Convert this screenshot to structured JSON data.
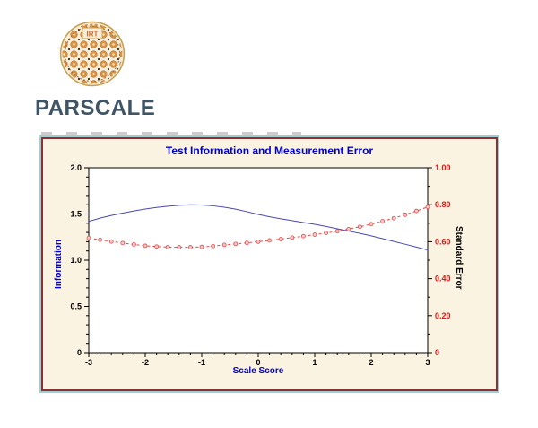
{
  "brand": {
    "name": "PARSCALE",
    "logo_text": "IRT"
  },
  "window": {
    "title": "Test Information and Measurement Error"
  },
  "chart_data": {
    "type": "line",
    "title": "Test Information and Measurement Error",
    "xlabel": "Scale Score",
    "ylabel_left": "Information",
    "ylabel_right": "Standard Error",
    "xlim": [
      -3,
      3
    ],
    "ylim_left": [
      0,
      2
    ],
    "ylim_right": [
      0,
      1
    ],
    "grid": false,
    "legend": "none",
    "x_tick_values": [
      -3,
      -2,
      -1,
      0,
      1,
      2,
      3
    ],
    "x_tick_labels": [
      "-3",
      "-2",
      "-1",
      "0",
      "1",
      "2",
      "3"
    ],
    "x_minor_step": 0.2,
    "left_tick_values": [
      2,
      1.5,
      1,
      0.5,
      0
    ],
    "left_tick_labels": [
      "2.0",
      "1.5",
      "1.0",
      "0.5",
      "0"
    ],
    "left_minor_step": 0.1,
    "right_tick_values": [
      1,
      0.8,
      0.6,
      0.4,
      0.2,
      0
    ],
    "right_tick_labels": [
      "1.00",
      "0.80",
      "0.60",
      "0.40",
      "0.20",
      "0"
    ],
    "right_minor_step": 0.1,
    "x": [
      -3,
      -2.8,
      -2.6,
      -2.4,
      -2.2,
      -2,
      -1.8,
      -1.6,
      -1.4,
      -1.2,
      -1,
      -0.8,
      -0.6,
      -0.4,
      -0.2,
      0,
      0.2,
      0.4,
      0.6,
      0.8,
      1,
      1.2,
      1.4,
      1.6,
      1.8,
      2,
      2.2,
      2.4,
      2.6,
      2.8,
      3
    ],
    "series": [
      {
        "name": "Information",
        "axis": "left",
        "color": "#4a4aae",
        "style": "solid",
        "marker": "none",
        "values": [
          1.42,
          1.455,
          1.484,
          1.51,
          1.533,
          1.553,
          1.57,
          1.584,
          1.594,
          1.599,
          1.597,
          1.588,
          1.573,
          1.552,
          1.525,
          1.495,
          1.47,
          1.448,
          1.428,
          1.408,
          1.388,
          1.365,
          1.34,
          1.315,
          1.29,
          1.263,
          1.233,
          1.203,
          1.173,
          1.142,
          1.11
        ]
      },
      {
        "name": "Standard Error",
        "axis": "right",
        "color": "#e84545",
        "style": "dashed",
        "marker": "circle",
        "marker_fill": "#f6caca",
        "values": [
          0.62,
          0.61,
          0.601,
          0.593,
          0.585,
          0.578,
          0.574,
          0.571,
          0.57,
          0.57,
          0.572,
          0.576,
          0.583,
          0.588,
          0.594,
          0.6,
          0.607,
          0.614,
          0.622,
          0.63,
          0.638,
          0.647,
          0.657,
          0.668,
          0.681,
          0.695,
          0.711,
          0.727,
          0.746,
          0.766,
          0.788
        ]
      }
    ]
  },
  "colors": {
    "title_text": "#0000cc",
    "left_axis_text": "#000000",
    "right_axis_text": "#ee1111",
    "window_bg": "#faf3e2",
    "window_border_outer": "#a5cbd2",
    "window_border_inner": "#8e3030",
    "plot_bg": "#ffffff",
    "brand_text": "#3f5565",
    "logo_orange": "#e0933f"
  }
}
